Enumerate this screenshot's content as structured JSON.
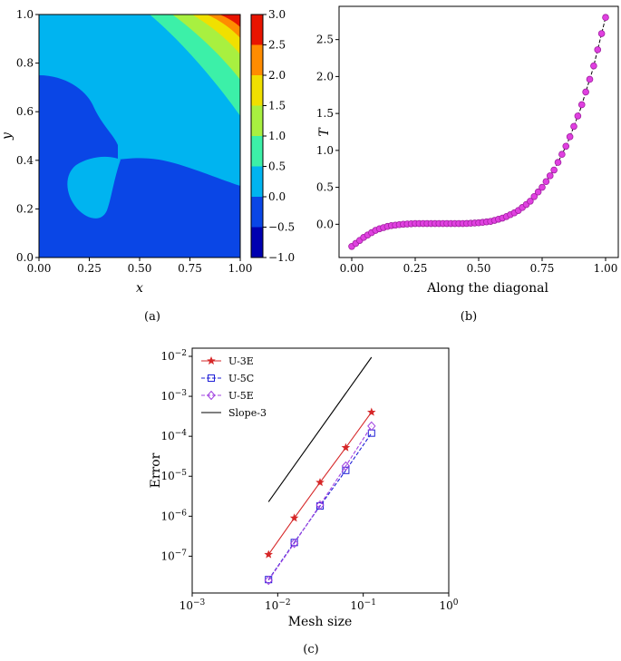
{
  "chart_data": [
    {
      "type": "heatmap",
      "caption": "(a)",
      "xlabel": "x",
      "ylabel": "y",
      "xlim": [
        0.0,
        1.0
      ],
      "ylim": [
        0.0,
        1.0
      ],
      "x_ticks": [
        "0.00",
        "0.25",
        "0.50",
        "0.75",
        "1.00"
      ],
      "y_ticks": [
        "0.0",
        "0.2",
        "0.4",
        "0.6",
        "0.8",
        "1.0"
      ],
      "colorbar": {
        "range": [
          -1.0,
          3.0
        ],
        "ticks": [
          "3.0",
          "2.5",
          "2.0",
          "1.5",
          "1.0",
          "0.5",
          "0.0",
          "−0.5",
          "−1.0"
        ],
        "levels": [
          -1.0,
          -0.5,
          0.0,
          0.5,
          1.0,
          1.5,
          2.0,
          2.5,
          3.0
        ],
        "colors": [
          "#0000b0",
          "#0a46e6",
          "#00b4f0",
          "#3cf0a8",
          "#a8f040",
          "#f0e000",
          "#ff8c00",
          "#e81400"
        ]
      }
    },
    {
      "type": "line",
      "caption": "(b)",
      "xlabel": "Along the diagonal",
      "ylabel": "T",
      "xlim": [
        -0.05,
        1.05
      ],
      "ylim": [
        -0.45,
        2.95
      ],
      "x_ticks": [
        "0.00",
        "0.25",
        "0.50",
        "0.75",
        "1.00"
      ],
      "y_ticks": [
        "0.0",
        "0.5",
        "1.0",
        "1.5",
        "2.0",
        "2.5"
      ],
      "series_description": "T(s) along the diagonal, s from 0 to 1",
      "x": [
        0.0,
        0.05,
        0.1,
        0.15,
        0.2,
        0.25,
        0.3,
        0.35,
        0.4,
        0.45,
        0.5,
        0.55,
        0.6,
        0.65,
        0.7,
        0.75,
        0.8,
        0.85,
        0.9,
        0.95,
        1.0
      ],
      "y": [
        -0.3,
        -0.17,
        -0.07,
        -0.02,
        0.0,
        0.01,
        0.01,
        0.01,
        0.01,
        0.01,
        0.02,
        0.04,
        0.09,
        0.17,
        0.3,
        0.5,
        0.75,
        1.1,
        1.55,
        2.1,
        2.8
      ],
      "colors": {
        "line": "#000000",
        "marker_fill": "#e040e0",
        "marker_edge": "#a020a0"
      }
    },
    {
      "type": "line",
      "caption": "(c)",
      "xlabel": "Mesh size",
      "ylabel": "Error",
      "xscale": "log",
      "yscale": "log",
      "xlim": [
        0.001,
        1.0
      ],
      "ylim": [
        1.2e-08,
        0.016
      ],
      "x_ticks": [
        "10−3",
        "10−2",
        "10−1",
        "100"
      ],
      "y_ticks": [
        "10−7",
        "10−6",
        "10−5",
        "10−4",
        "10−3",
        "10−2"
      ],
      "legend_position": "top-left",
      "series": [
        {
          "name": "U-3E",
          "x": [
            0.0078125,
            0.015625,
            0.03125,
            0.0625,
            0.125
          ],
          "values": [
            1.1e-07,
            9e-07,
            7e-06,
            5.2e-05,
            0.0004
          ],
          "color": "#d62728",
          "marker": "star",
          "dash": "solid"
        },
        {
          "name": "U-5C",
          "x": [
            0.0078125,
            0.015625,
            0.03125,
            0.0625,
            0.125
          ],
          "values": [
            2.6e-08,
            2.2e-07,
            1.8e-06,
            1.4e-05,
            0.00012
          ],
          "color": "#1f1fd6",
          "marker": "square",
          "dash": "dashed"
        },
        {
          "name": "U-5E",
          "x": [
            0.0078125,
            0.015625,
            0.03125,
            0.0625,
            0.125
          ],
          "values": [
            2.5e-08,
            2.1e-07,
            1.9e-06,
            1.8e-05,
            0.00018
          ],
          "color": "#a040e0",
          "marker": "diamond",
          "dash": "dashed"
        },
        {
          "name": "Slope-3",
          "x": [
            0.0078125,
            0.125
          ],
          "values": [
            2.3e-06,
            0.0095
          ],
          "color": "#000000",
          "marker": "none",
          "dash": "solid"
        }
      ]
    }
  ]
}
